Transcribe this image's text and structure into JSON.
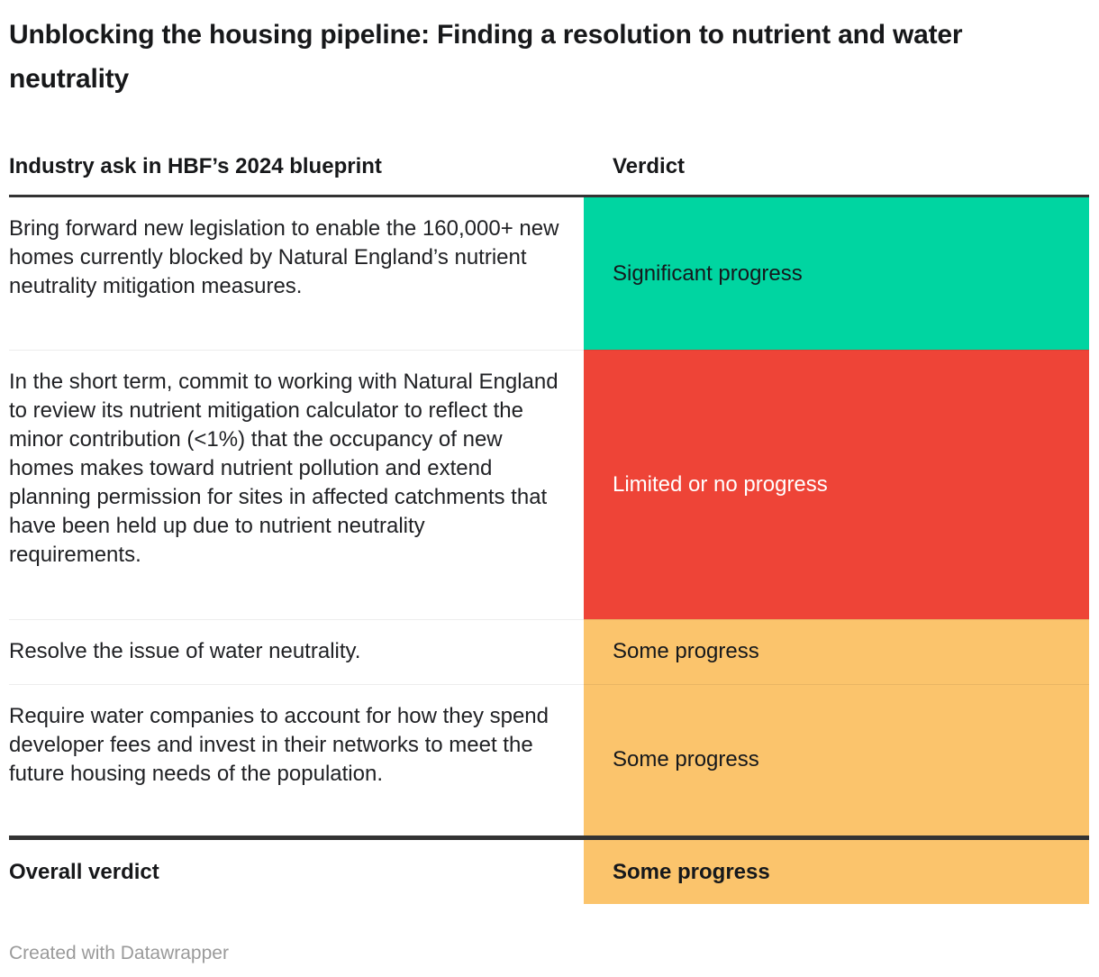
{
  "title": "Unblocking the housing pipeline: Finding a resolution to nutrient and water neutrality",
  "columns": {
    "ask": "Industry ask in HBF’s 2024 blueprint",
    "verdict": "Verdict"
  },
  "table": {
    "rows": [
      {
        "ask": "Bring forward new legislation to enable the 160,000+ new homes currently blocked by Natural England’s nutrient neutrality mitigation measures.",
        "verdict": "Significant progress",
        "status": "significant"
      },
      {
        "ask": "In the short term, commit to working with Natural England to review its nutrient mitigation calculator to reflect the minor contribution (<1%) that the occupancy of new homes makes toward nutrient pollution and extend planning permission for sites in affected catchments that have been held up due to nutrient neutrality requirements.",
        "verdict": "Limited or no progress",
        "status": "limited"
      },
      {
        "ask": "Resolve the issue of water neutrality.",
        "verdict": "Some progress",
        "status": "some"
      },
      {
        "ask": "Require water companies to account for how they spend developer fees and invest in their networks to meet the future housing needs of the population.",
        "verdict": "Some progress",
        "status": "some"
      }
    ],
    "overall": {
      "label": "Overall verdict",
      "verdict": "Some progress",
      "status": "some"
    }
  },
  "statuses": {
    "significant": {
      "bg": "#00d5a1",
      "text": "#15181c"
    },
    "limited": {
      "bg": "#ee4437",
      "text": "#ffffff"
    },
    "some": {
      "bg": "#fbc46c",
      "text": "#15181c"
    }
  },
  "footer": {
    "credit": "Created with Datawrapper"
  },
  "chart_data": {
    "type": "table",
    "title": "Unblocking the housing pipeline: Finding a resolution to nutrient and water neutrality",
    "columns": [
      "Industry ask in HBF’s 2024 blueprint",
      "Verdict"
    ],
    "rows": [
      [
        "Bring forward new legislation to enable the 160,000+ new homes currently blocked by Natural England’s nutrient neutrality mitigation measures.",
        "Significant progress"
      ],
      [
        "In the short term, commit to working with Natural England to review its nutrient mitigation calculator to reflect the minor contribution (<1%) that the occupancy of new homes makes toward nutrient pollution and extend planning permission for sites in affected catchments that have been held up due to nutrient neutrality requirements.",
        "Limited or no progress"
      ],
      [
        "Resolve the issue of water neutrality.",
        "Some progress"
      ],
      [
        "Require water companies to account for how they spend developer fees and invest in their networks to meet the future housing needs of the population.",
        "Some progress"
      ],
      [
        "Overall verdict",
        "Some progress"
      ]
    ],
    "verdict_colors": {
      "Significant progress": "#00d5a1",
      "Limited or no progress": "#ee4437",
      "Some progress": "#fbc46c"
    },
    "notes": "Verdict cells are color-coded; text is white on red, near-black on green and orange."
  }
}
